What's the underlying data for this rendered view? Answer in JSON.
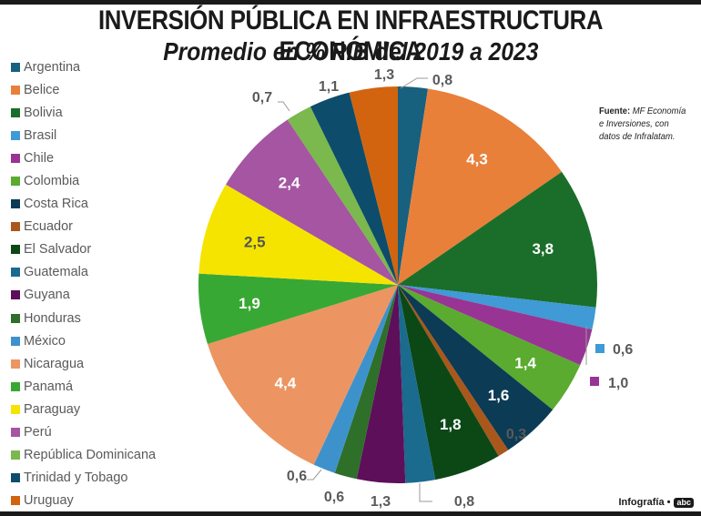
{
  "header": {
    "title": "INVERSIÓN PÚBLICA EN INFRAESTRUCTURA ECONÓMICA",
    "subtitle": "Promedio en % PIB del 2019 a 2023"
  },
  "source": {
    "label": "Fuente:",
    "text": "MF Economía e Inversiones, con datos de Infralatam."
  },
  "credit": {
    "label": "Infografía •",
    "logo": "abc"
  },
  "chart_data": {
    "type": "pie",
    "title": "INVERSIÓN PÚBLICA EN INFRAESTRUCTURA ECONÓMICA",
    "subtitle": "Promedio en % PIB del 2019 a 2023",
    "legend_position": "left",
    "start": "top",
    "direction": "clockwise",
    "slices": [
      {
        "label": "Argentina",
        "value": 0.8,
        "display": "0,8",
        "color": "#17607e",
        "label_style": "outside",
        "text_color": "#5a5a5a"
      },
      {
        "label": "Belice",
        "value": 4.3,
        "display": "4,3",
        "color": "#e8803a",
        "label_style": "inside",
        "text_color": "#ffffff"
      },
      {
        "label": "Bolivia",
        "value": 3.8,
        "display": "3,8",
        "color": "#1b6e2a",
        "label_style": "inside",
        "text_color": "#ffffff"
      },
      {
        "label": "Brasil",
        "value": 0.6,
        "display": "0,6",
        "color": "#3f9ad5",
        "label_style": "legend-side",
        "text_color": "#5a5a5a"
      },
      {
        "label": "Chile",
        "value": 1.0,
        "display": "1,0",
        "color": "#983594",
        "label_style": "legend-side",
        "text_color": "#5a5a5a"
      },
      {
        "label": "Colombia",
        "value": 1.4,
        "display": "1,4",
        "color": "#5aab2f",
        "label_style": "inside",
        "text_color": "#ffffff"
      },
      {
        "label": "Costa Rica",
        "value": 1.6,
        "display": "1,6",
        "color": "#0c3b55",
        "label_style": "inside",
        "text_color": "#ffffff"
      },
      {
        "label": "Ecuador",
        "value": 0.3,
        "display": "0,3",
        "color": "#a9571b",
        "label_style": "outside",
        "text_color": "#5a5a5a"
      },
      {
        "label": "El Salvador",
        "value": 1.8,
        "display": "1,8",
        "color": "#0c4816",
        "label_style": "inside",
        "text_color": "#ffffff"
      },
      {
        "label": "Guatemala",
        "value": 0.8,
        "display": "0,8",
        "color": "#1a6b8e",
        "label_style": "outside",
        "text_color": "#5a5a5a"
      },
      {
        "label": "Guyana",
        "value": 1.3,
        "display": "1,3",
        "color": "#5e0f5a",
        "label_style": "outside",
        "text_color": "#5a5a5a"
      },
      {
        "label": "Honduras",
        "value": 0.6,
        "display": "0,6",
        "color": "#2e6f2a",
        "label_style": "outside",
        "text_color": "#5a5a5a"
      },
      {
        "label": "México",
        "value": 0.6,
        "display": "0,6",
        "color": "#3d92cc",
        "label_style": "outside",
        "text_color": "#5a5a5a"
      },
      {
        "label": "Nicaragua",
        "value": 4.4,
        "display": "4,4",
        "color": "#ec9562",
        "label_style": "inside",
        "text_color": "#ffffff"
      },
      {
        "label": "Panamá",
        "value": 1.9,
        "display": "1,9",
        "color": "#38a834",
        "label_style": "inside",
        "text_color": "#ffffff"
      },
      {
        "label": "Paraguay",
        "value": 2.5,
        "display": "2,5",
        "color": "#f5e400",
        "label_style": "inside",
        "text_color": "#555555"
      },
      {
        "label": "Perú",
        "value": 2.4,
        "display": "2,4",
        "color": "#a555a1",
        "label_style": "inside",
        "text_color": "#ffffff"
      },
      {
        "label": "República Dominicana",
        "value": 0.7,
        "display": "0,7",
        "color": "#7bb84e",
        "label_style": "outside",
        "text_color": "#5a5a5a"
      },
      {
        "label": "Trinidad y Tobago",
        "value": 1.1,
        "display": "1,1",
        "color": "#0d4c6a",
        "label_style": "outside",
        "text_color": "#5a5a5a"
      },
      {
        "label": "Uruguay",
        "value": 1.3,
        "display": "1,3",
        "color": "#d2640f",
        "label_style": "outside",
        "text_color": "#5a5a5a"
      }
    ]
  }
}
